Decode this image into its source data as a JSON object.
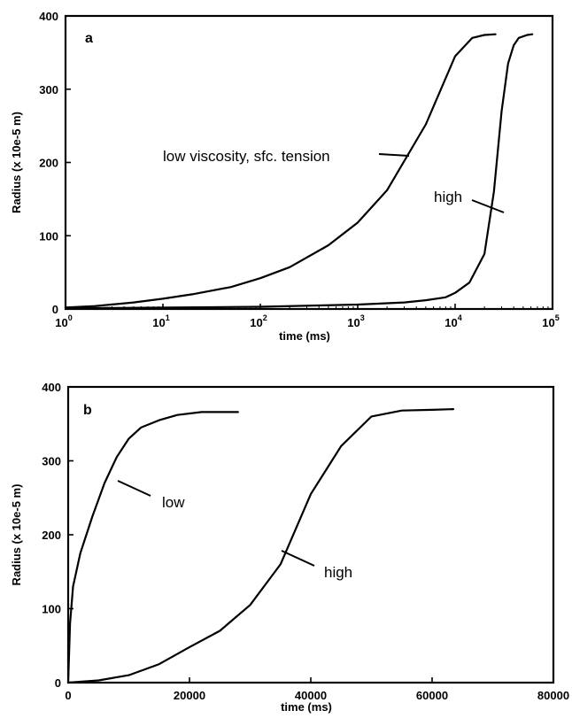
{
  "chart_data": [
    {
      "type": "line",
      "panel_label": "a",
      "xlabel": "time (ms)",
      "ylabel": "Radius (x 10e-5 m)",
      "xscale": "log",
      "xlim": [
        1,
        100000
      ],
      "ylim": [
        0,
        400
      ],
      "xticks": [
        {
          "value": 1,
          "base": "10",
          "exp": "0"
        },
        {
          "value": 10,
          "base": "10",
          "exp": "1"
        },
        {
          "value": 100,
          "base": "10",
          "exp": "2"
        },
        {
          "value": 1000,
          "base": "10",
          "exp": "3"
        },
        {
          "value": 10000,
          "base": "10",
          "exp": "4"
        },
        {
          "value": 100000,
          "base": "10",
          "exp": "5"
        }
      ],
      "yticks": [
        0,
        100,
        200,
        300,
        400
      ],
      "grid": false,
      "series": [
        {
          "name": "low viscosity, sfc. tension",
          "x": [
            1,
            2,
            5,
            10,
            20,
            50,
            100,
            200,
            500,
            1000,
            2000,
            5000,
            10000,
            15000,
            20000,
            26000
          ],
          "y": [
            2,
            4,
            9,
            14,
            20,
            30,
            42,
            57,
            87,
            118,
            162,
            252,
            345,
            370,
            374,
            375
          ]
        },
        {
          "name": "high",
          "x": [
            1,
            100,
            1000,
            3000,
            5000,
            8000,
            10000,
            14000,
            20000,
            25000,
            30000,
            35000,
            40000,
            45000,
            55000,
            62000
          ],
          "y": [
            1,
            3,
            6,
            9,
            12,
            16,
            22,
            36,
            75,
            160,
            270,
            335,
            360,
            370,
            374,
            375
          ]
        }
      ],
      "annotations": [
        {
          "text": "low viscosity, sfc. tension",
          "x": 3000,
          "y": 205
        },
        {
          "text": "high",
          "x": 22000,
          "y": 133
        }
      ]
    },
    {
      "type": "line",
      "panel_label": "b",
      "xlabel": "time (ms)",
      "ylabel": "Radius (x 10e-5 m)",
      "xlim": [
        0,
        80000
      ],
      "ylim": [
        0,
        400
      ],
      "xticks": [
        {
          "value": 0,
          "label": "0"
        },
        {
          "value": 20000,
          "label": "20000"
        },
        {
          "value": 40000,
          "label": "40000"
        },
        {
          "value": 60000,
          "label": "60000"
        },
        {
          "value": 80000,
          "label": "80000"
        }
      ],
      "yticks": [
        0,
        100,
        200,
        300,
        400
      ],
      "grid": false,
      "series": [
        {
          "name": "low",
          "x": [
            0,
            300,
            800,
            2000,
            4000,
            6000,
            8000,
            10000,
            12000,
            15000,
            18000,
            22000,
            28000
          ],
          "y": [
            0,
            80,
            130,
            175,
            225,
            270,
            305,
            330,
            345,
            355,
            362,
            366,
            366
          ]
        },
        {
          "name": "high",
          "x": [
            0,
            5000,
            10000,
            15000,
            20000,
            25000,
            30000,
            35000,
            40000,
            45000,
            50000,
            55000,
            60000,
            63500
          ],
          "y": [
            0,
            3,
            10,
            25,
            48,
            70,
            105,
            160,
            255,
            320,
            360,
            368,
            369,
            370
          ]
        }
      ],
      "annotations": [
        {
          "text": "low",
          "x": 13000,
          "y": 252
        },
        {
          "text": "high",
          "x": 45000,
          "y": 112
        }
      ]
    }
  ]
}
